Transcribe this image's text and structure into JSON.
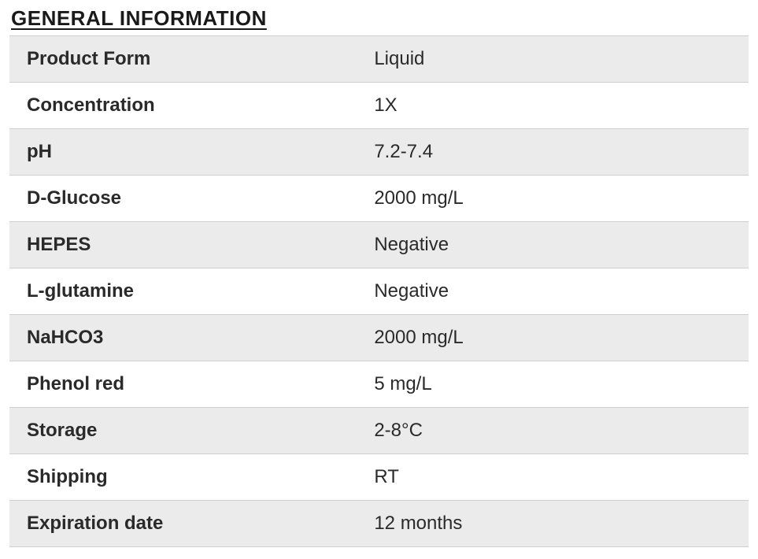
{
  "section": {
    "title": "GENERAL INFORMATION"
  },
  "table": {
    "type": "table",
    "columns": [
      {
        "role": "label",
        "width_pct": 47,
        "font_weight": "bold",
        "align": "left"
      },
      {
        "role": "value",
        "width_pct": 53,
        "font_weight": "normal",
        "align": "left"
      }
    ],
    "row_colors": {
      "odd": "#ebebeb",
      "even": "#ffffff"
    },
    "border_color": "#cfcfcf",
    "text_color": "#2a2a2a",
    "cell_fontsize": 24,
    "rows": [
      {
        "label": "Product Form",
        "value": "Liquid"
      },
      {
        "label": "Concentration",
        "value": "1X"
      },
      {
        "label": "pH",
        "value": "7.2-7.4"
      },
      {
        "label": "D-Glucose",
        "value": "2000 mg/L"
      },
      {
        "label": "HEPES",
        "value": "Negative"
      },
      {
        "label": "L-glutamine",
        "value": "Negative"
      },
      {
        "label": "NaHCO3",
        "value": "2000 mg/L"
      },
      {
        "label": "Phenol red",
        "value": "5 mg/L"
      },
      {
        "label": "Storage",
        "value": "2-8°C"
      },
      {
        "label": "Shipping",
        "value": "RT"
      },
      {
        "label": "Expiration date",
        "value": "12 months"
      }
    ]
  },
  "styling": {
    "title_fontsize": 26,
    "title_color": "#1a1a1a",
    "background_color": "#ffffff",
    "font_family": "Arial"
  }
}
